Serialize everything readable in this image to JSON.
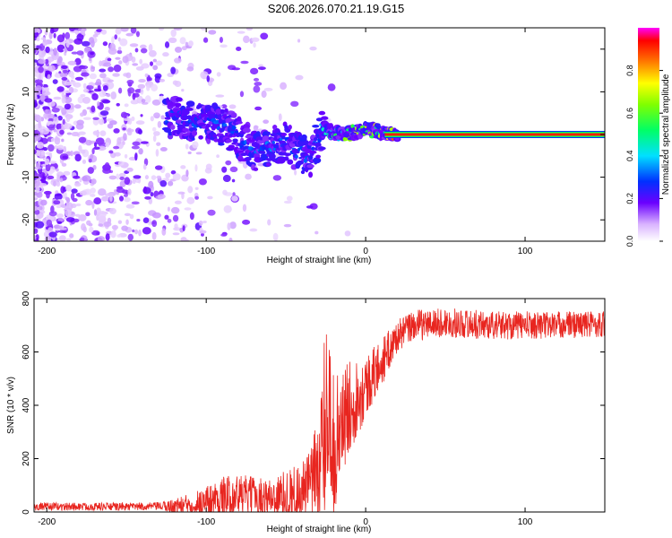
{
  "title": "S206.2026.070.21.19.G15",
  "chart_data": [
    {
      "type": "heatmap",
      "title": "S206.2026.070.21.19.G15",
      "xlabel": "Height of straight line (km)",
      "ylabel": "Frequency (Hz)",
      "xlim": [
        -208,
        150
      ],
      "ylim": [
        -25,
        25
      ],
      "xticks": [
        -200,
        -100,
        0,
        100
      ],
      "yticks": [
        -20,
        -10,
        0,
        10,
        20
      ],
      "colorbar": {
        "label": "Normalized spectral amplitude",
        "range": [
          0,
          1
        ],
        "ticks": [
          0.0,
          0.2,
          0.4,
          0.6,
          0.8
        ],
        "tick_labels": [
          "0.0",
          "0.2",
          "0.4",
          "0.6",
          "0.8"
        ]
      },
      "ridge": {
        "description": "dominant spectral line",
        "points": [
          {
            "x": -120,
            "y": 4,
            "amp": 0.3
          },
          {
            "x": -100,
            "y": 3,
            "amp": 0.3
          },
          {
            "x": -85,
            "y": 1,
            "amp": 0.3
          },
          {
            "x": -70,
            "y": -4,
            "amp": 0.35
          },
          {
            "x": -50,
            "y": -2,
            "amp": 0.3
          },
          {
            "x": -35,
            "y": -6,
            "amp": 0.3
          },
          {
            "x": -28,
            "y": 1,
            "amp": 0.4
          },
          {
            "x": -15,
            "y": 0,
            "amp": 0.6
          },
          {
            "x": 0,
            "y": 1,
            "amp": 0.7
          },
          {
            "x": 12,
            "y": 0.5,
            "amp": 0.8
          },
          {
            "x": 20,
            "y": 0,
            "amp": 0.9
          },
          {
            "x": 150,
            "y": 0,
            "amp": 0.9
          }
        ]
      }
    },
    {
      "type": "line",
      "xlabel": "Height of straight line (km)",
      "ylabel": "SNR (10 * v/v)",
      "xlim": [
        -208,
        150
      ],
      "ylim": [
        0,
        800
      ],
      "xticks": [
        -200,
        -100,
        0,
        100
      ],
      "yticks": [
        0,
        200,
        400,
        600,
        800
      ],
      "series": [
        {
          "name": "SNR",
          "color": "#e8251f",
          "trend": {
            "x": [
              -208,
              -150,
              -120,
              -100,
              -80,
              -60,
              -40,
              -30,
              -25,
              -20,
              -10,
              0,
              10,
              20,
              30,
              50,
              80,
              100,
              150
            ],
            "y": [
              20,
              20,
              22,
              40,
              65,
              55,
              80,
              140,
              320,
              250,
              400,
              470,
              560,
              660,
              700,
              710,
              700,
              700,
              705
            ]
          },
          "noise_amplitude": {
            "x": [
              -208,
              -130,
              -110,
              -90,
              -60,
              -35,
              -25,
              -15,
              0,
              20,
              50,
              150
            ],
            "y": [
              15,
              15,
              40,
              80,
              70,
              120,
              320,
              200,
              120,
              60,
              55,
              50
            ]
          }
        }
      ]
    }
  ]
}
